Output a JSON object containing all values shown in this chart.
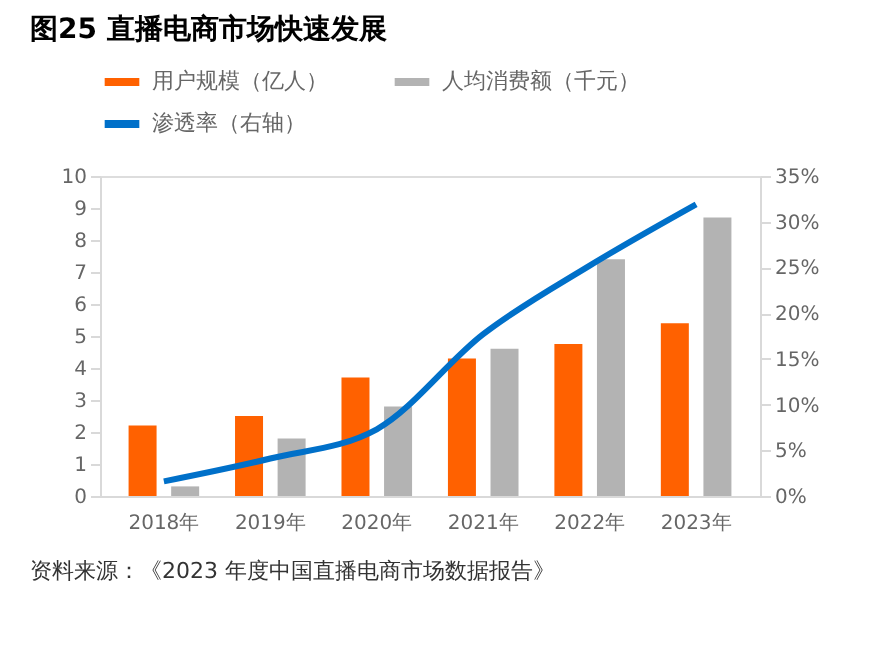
{
  "chart_data": {
    "type": "bar",
    "title": "图25 直播电商市场快速发展",
    "categories": [
      "2018年",
      "2019年",
      "2020年",
      "2021年",
      "2022年",
      "2023年"
    ],
    "series": [
      {
        "name": "用户规模（亿人）",
        "color": "#ff6100",
        "values": [
          2.2,
          2.5,
          3.7,
          4.3,
          4.75,
          5.4
        ]
      },
      {
        "name": "人均消费额（千元）",
        "color": "#b3b3b3",
        "values": [
          0.3,
          1.8,
          2.8,
          4.6,
          7.4,
          8.7
        ]
      },
      {
        "name": "渗透率（右轴）",
        "type": "line",
        "axis": "y2",
        "color": "#0070c9",
        "values": [
          1.6,
          4.1,
          7.3,
          17.7,
          25.2,
          31.9
        ]
      }
    ],
    "ylim": [
      0,
      10
    ],
    "yticks": [
      0,
      1,
      2,
      3,
      4,
      5,
      6,
      7,
      8,
      9,
      10
    ],
    "y2lim": [
      0,
      35
    ],
    "y2ticks": [
      {
        "value": 0,
        "label": "0%"
      },
      {
        "value": 5,
        "label": "5%"
      },
      {
        "value": 10,
        "label": "10%"
      },
      {
        "value": 15,
        "label": "15%"
      },
      {
        "value": 20,
        "label": "20%"
      },
      {
        "value": 25,
        "label": "25%"
      },
      {
        "value": 30,
        "label": "30%"
      },
      {
        "value": 35,
        "label": "35%"
      }
    ],
    "grid": false,
    "legend": "top",
    "annotations": [
      "资料来源：《2023 年度中国直播电商市场数据报告》"
    ]
  }
}
